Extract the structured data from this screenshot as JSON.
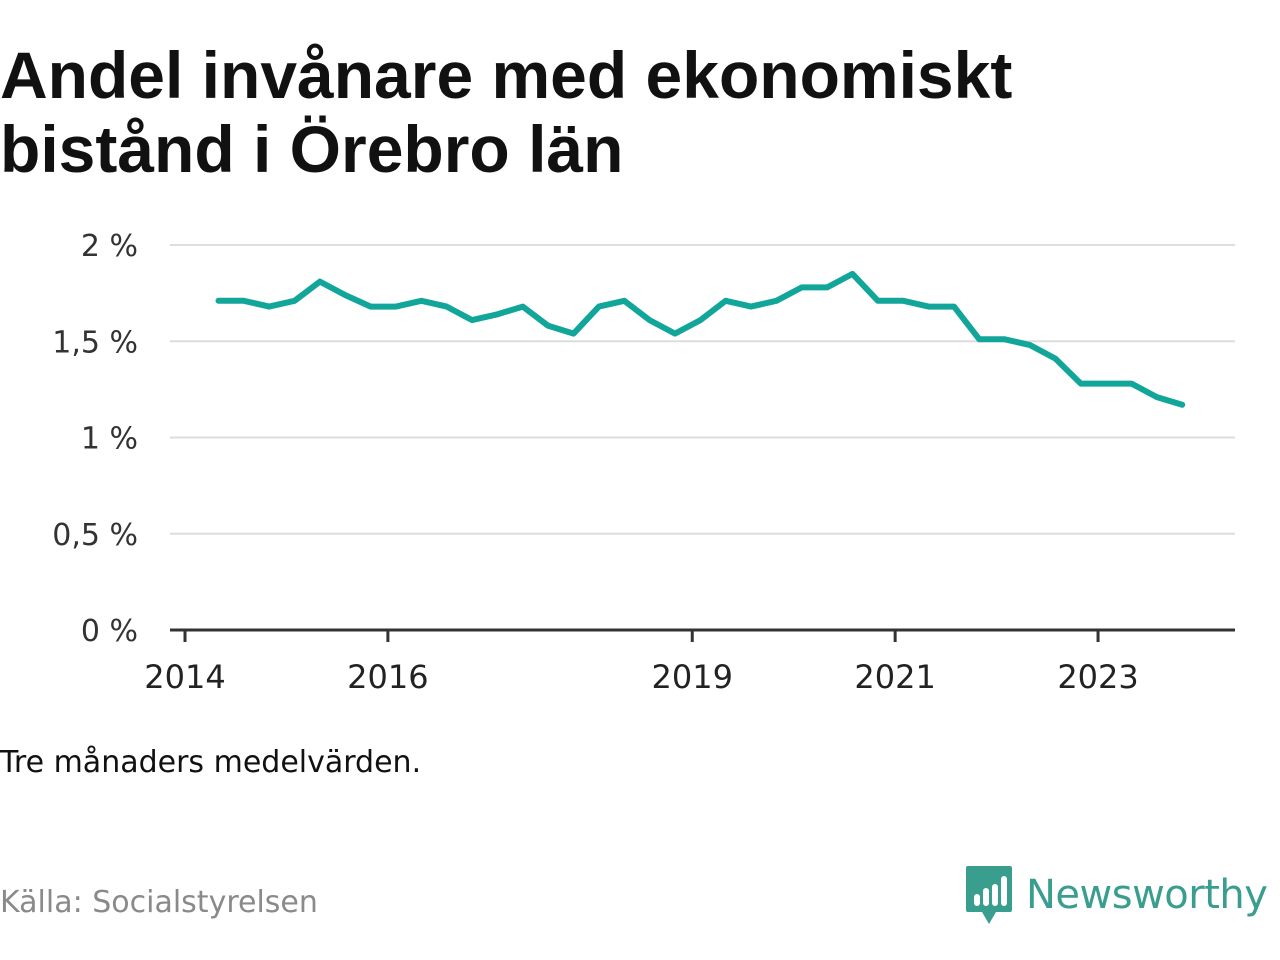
{
  "title": "Andel invånare med ekonomiskt bistånd i Örebro län",
  "subtitle": "Tre månaders medelvärden.",
  "source": "Källa: Socialstyrelsen",
  "brand": {
    "name": "Newsworthy",
    "color": "#3a9e8f",
    "icon": "chart-speech-bubble-icon"
  },
  "colors": {
    "line": "#12a69a",
    "grid": "#dddddd",
    "axis": "#333333"
  },
  "chart_data": {
    "type": "line",
    "title": "Andel invånare med ekonomiskt bistånd i Örebro län",
    "ylim": [
      0,
      2
    ],
    "y_ticks": [
      0,
      0.5,
      1,
      1.5,
      2
    ],
    "y_tick_labels": [
      "0 %",
      "0,5 %",
      "1 %",
      "1,5 %",
      "2 %"
    ],
    "x_ticks": [
      2014,
      2016,
      2019,
      2021,
      2023
    ],
    "x_tick_labels": [
      "2014",
      "2016",
      "2019",
      "2021",
      "2023"
    ],
    "xlim": [
      2014,
      2024.35
    ],
    "grid": true,
    "series": [
      {
        "x": [
          2014.33,
          2014.58,
          2014.83,
          2015.08,
          2015.33,
          2015.58,
          2015.83,
          2016.08,
          2016.33,
          2016.58,
          2016.83,
          2017.08,
          2017.33,
          2017.58,
          2017.83,
          2018.08,
          2018.33,
          2018.58,
          2018.83,
          2019.08,
          2019.33,
          2019.58,
          2019.83,
          2020.08,
          2020.33,
          2020.58,
          2020.83,
          2021.08,
          2021.33,
          2021.58,
          2021.83,
          2022.08,
          2022.33,
          2022.58,
          2022.83,
          2023.08,
          2023.33,
          2023.58,
          2023.83
        ],
        "values": [
          1.71,
          1.71,
          1.68,
          1.71,
          1.81,
          1.74,
          1.68,
          1.68,
          1.71,
          1.68,
          1.61,
          1.64,
          1.68,
          1.58,
          1.54,
          1.68,
          1.71,
          1.61,
          1.54,
          1.61,
          1.71,
          1.68,
          1.71,
          1.78,
          1.78,
          1.85,
          1.71,
          1.71,
          1.68,
          1.68,
          1.51,
          1.51,
          1.48,
          1.41,
          1.28,
          1.28,
          1.28,
          1.21,
          1.17
        ]
      }
    ]
  }
}
